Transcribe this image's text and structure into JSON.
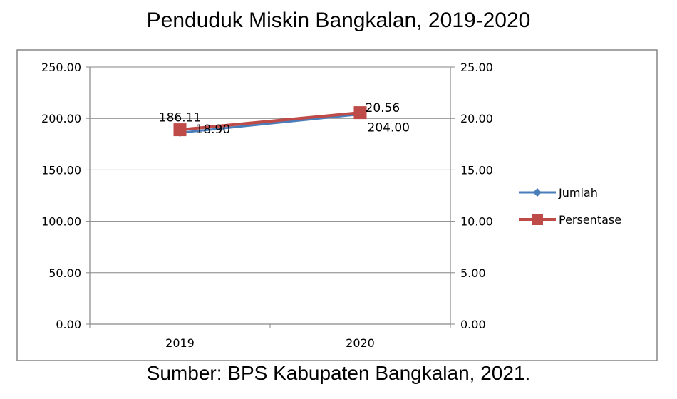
{
  "chart_data": {
    "type": "line",
    "title": "Penduduk Miskin Bangkalan, 2019-2020",
    "source": "Sumber: BPS Kabupaten Bangkalan, 2021.",
    "categories": [
      "2019",
      "2020"
    ],
    "y_left": {
      "ylim": [
        0,
        250
      ],
      "ticks": [
        "0.00",
        "50.00",
        "100.00",
        "150.00",
        "200.00",
        "250.00"
      ]
    },
    "y_right": {
      "ylim": [
        0,
        25
      ],
      "ticks": [
        "0.00",
        "5.00",
        "10.00",
        "15.00",
        "20.00",
        "25.00"
      ]
    },
    "grid": true,
    "legend_position": "right",
    "series": [
      {
        "name": "Jumlah",
        "axis": "left",
        "values": [
          186.11,
          204.0
        ],
        "labels": [
          "186.11",
          "204.00"
        ],
        "color": "#4a7ebb",
        "marker": "diamond"
      },
      {
        "name": "Persentase",
        "axis": "right",
        "values": [
          18.9,
          20.56
        ],
        "labels": [
          "18.90",
          "20.56"
        ],
        "color": "#be4b48",
        "marker": "square"
      }
    ]
  }
}
